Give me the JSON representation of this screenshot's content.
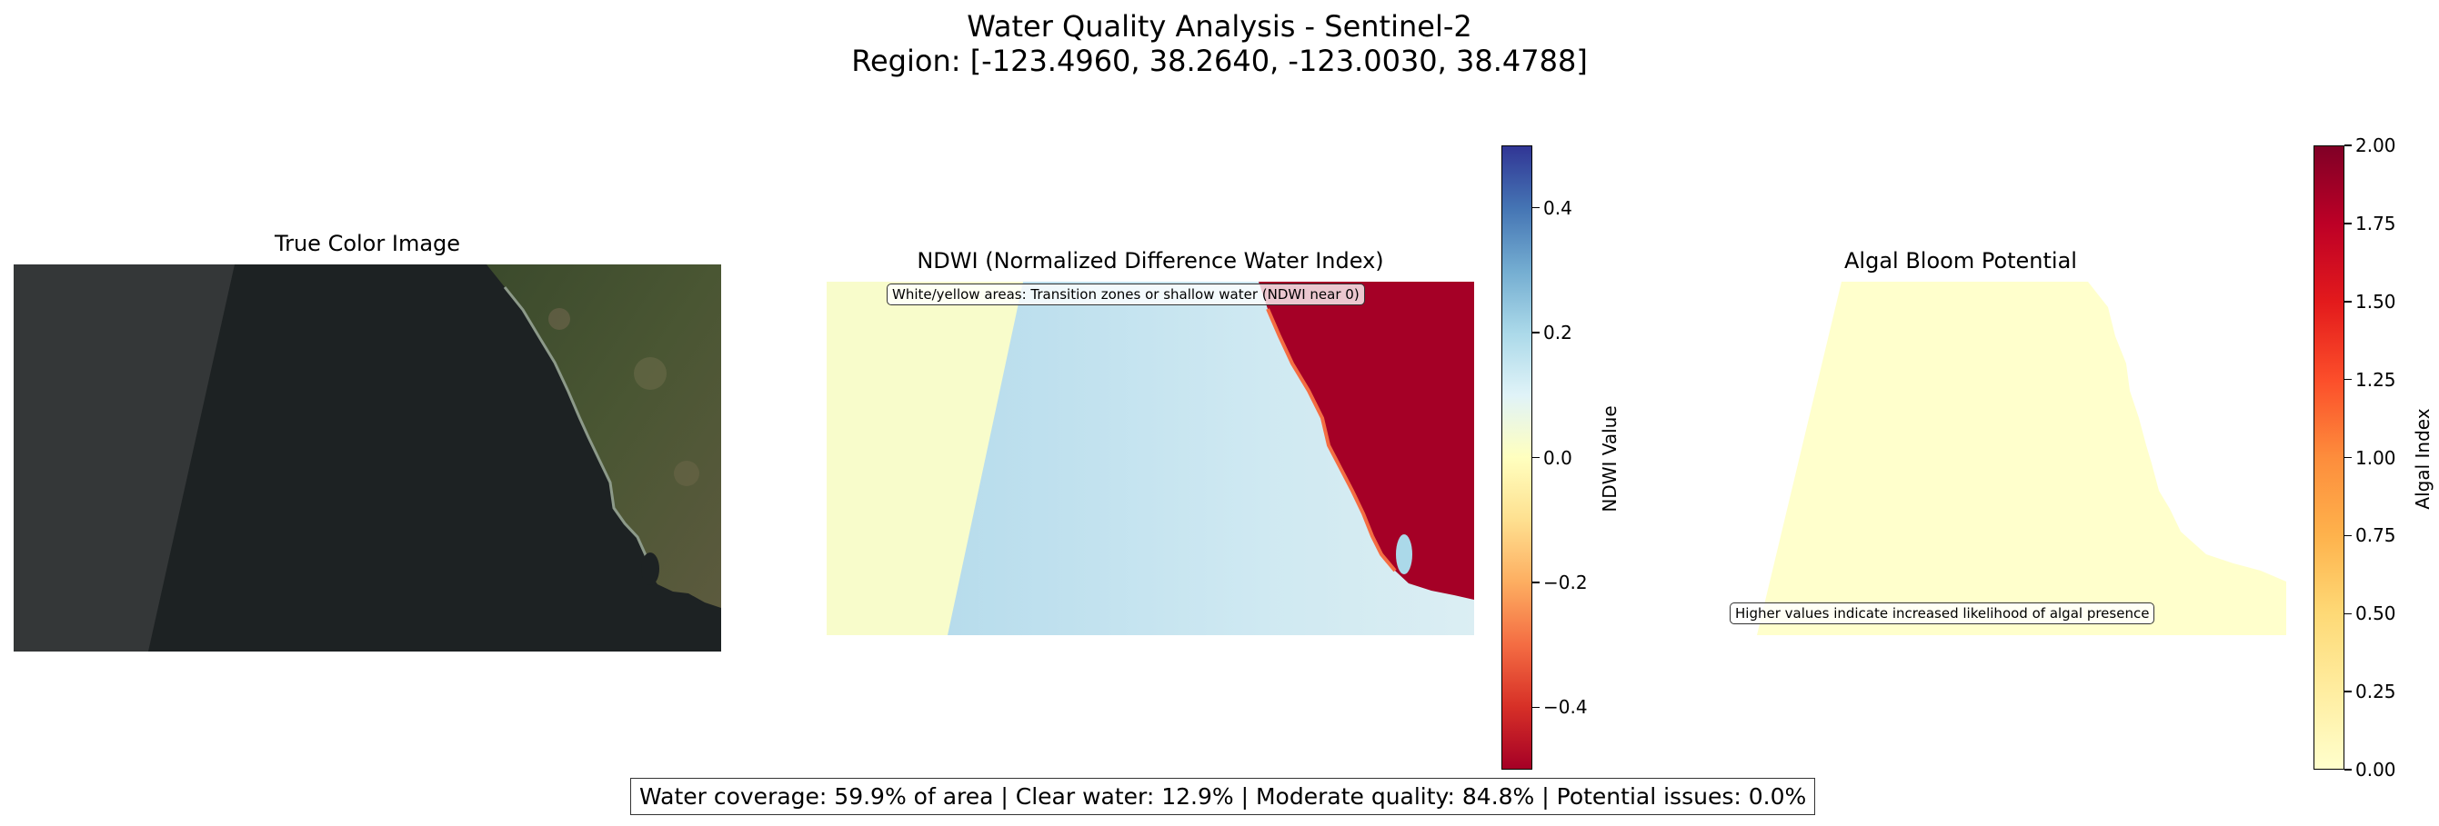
{
  "chart_data": [
    {
      "type": "image",
      "title": "True Color Image"
    },
    {
      "type": "heatmap",
      "title": "NDWI (Normalized Difference Water Index)",
      "annotation": "White/yellow areas: Transition zones or shallow water (NDWI near 0)",
      "colormap": "RdYlBu",
      "colorbar": {
        "label": "NDWI Value",
        "vmin": -0.5,
        "vmax": 0.5,
        "ticks": [
          -0.4,
          -0.2,
          0.0,
          0.2,
          0.4
        ],
        "tick_labels": [
          "−0.4",
          "−0.2",
          "0.0",
          "0.2",
          "0.4"
        ]
      }
    },
    {
      "type": "heatmap",
      "title": "Algal Bloom Potential",
      "annotation": "Higher values indicate increased likelihood of algal presence",
      "colormap": "YlOrRd",
      "colorbar": {
        "label": "Algal Index",
        "vmin": 0.0,
        "vmax": 2.0,
        "ticks": [
          0.0,
          0.25,
          0.5,
          0.75,
          1.0,
          1.25,
          1.5,
          1.75,
          2.0
        ],
        "tick_labels": [
          "0.00",
          "0.25",
          "0.50",
          "0.75",
          "1.00",
          "1.25",
          "1.50",
          "1.75",
          "2.00"
        ]
      }
    }
  ],
  "figure": {
    "title_line1": "Water Quality Analysis - Sentinel-2",
    "title_line2": "Region: [-123.4960, 38.2640, -123.0030, 38.4788]",
    "summary": "Water coverage: 59.9% of area | Clear water: 12.9% | Moderate quality: 84.8% | Potential issues: 0.0%"
  }
}
